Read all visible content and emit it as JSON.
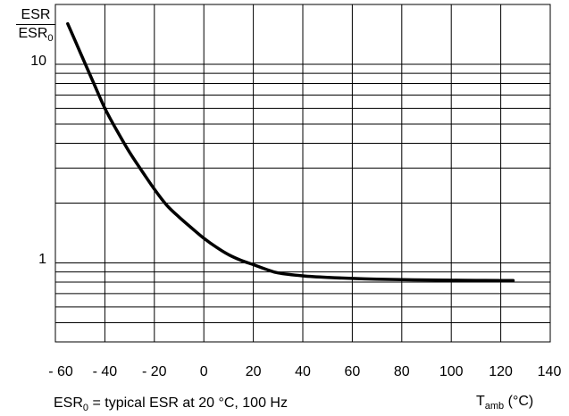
{
  "chart_data": {
    "type": "line",
    "ylabel_numerator": "ESR",
    "ylabel_denominator_main": "ESR",
    "ylabel_denominator_sub": "0",
    "xlabel_main": "T",
    "xlabel_sub": "amb",
    "xlabel_unit": "(°C)",
    "note_main": "ESR",
    "note_sub": "0",
    "note_rest": " = typical ESR at 20 °C, 100 Hz",
    "x_ticks": [
      "- 60",
      "- 40",
      "- 20",
      "0",
      "20",
      "40",
      "60",
      "80",
      "100",
      "120",
      "140"
    ],
    "x_tick_values": [
      -60,
      -40,
      -20,
      0,
      20,
      40,
      60,
      80,
      100,
      120,
      140
    ],
    "xlim": [
      -60,
      140
    ],
    "y_scale": "log",
    "ylim": [
      0.4,
      20
    ],
    "y_ticks": [
      "10",
      "1"
    ],
    "y_tick_values": [
      10,
      1
    ],
    "grid": true,
    "line_color": "#000000",
    "series": [
      {
        "x": [
          -55,
          -50,
          -45,
          -40,
          -35,
          -30,
          -25,
          -20,
          -15,
          -10,
          -5,
          0,
          5,
          10,
          15,
          20,
          25,
          30,
          40,
          50,
          60,
          70,
          80,
          90,
          100,
          110,
          120,
          125
        ],
        "values": [
          16,
          11.5,
          8.3,
          6.0,
          4.6,
          3.6,
          2.9,
          2.35,
          1.95,
          1.7,
          1.5,
          1.33,
          1.2,
          1.1,
          1.03,
          0.98,
          0.93,
          0.89,
          0.86,
          0.845,
          0.835,
          0.828,
          0.823,
          0.82,
          0.818,
          0.816,
          0.815,
          0.815
        ]
      }
    ]
  }
}
